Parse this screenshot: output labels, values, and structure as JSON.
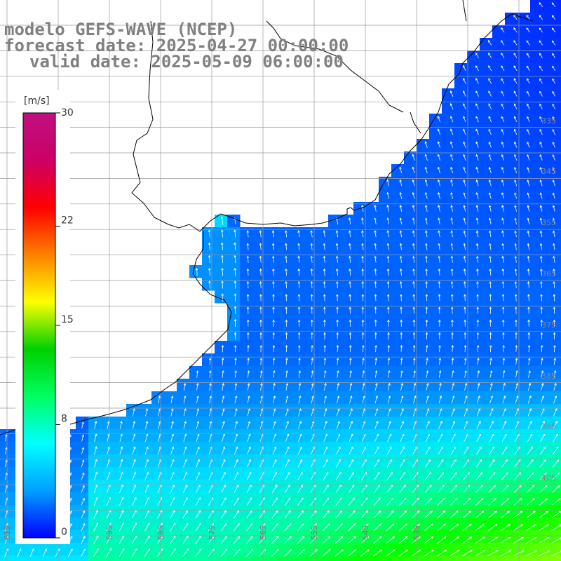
{
  "title": {
    "line1": "modelo GEFS-WAVE (NCEP)",
    "line2": "forecast date: 2025-04-27 00:00:00",
    "line3": "valid date: 2025-05-09 06:00:00"
  },
  "colorbar": {
    "unit": "[m/s]",
    "min": 0,
    "max": 30,
    "ticks": [
      "30",
      "22",
      "15",
      "8",
      "0"
    ],
    "tick_values": [
      30,
      22,
      15,
      8,
      0
    ],
    "gradient": [
      "#0000ff",
      "#00a0ff",
      "#00ffff",
      "#00ff60",
      "#00d000",
      "#ffff00",
      "#ff8000",
      "#ff0000",
      "#cc0066",
      "#c01080"
    ]
  },
  "colors": {
    "land": "#ffffff",
    "coastline": "#000000",
    "grid": "#b0b0b0",
    "arrows": "#ffffff",
    "title": "#808080"
  },
  "grid": {
    "lat_labels": [
      "335",
      "345",
      "355",
      "365",
      "375",
      "385",
      "395",
      "405"
    ],
    "lon_labels": [
      "615",
      "605",
      "595",
      "585",
      "575",
      "565",
      "555",
      "545",
      "535"
    ]
  },
  "field": {
    "variable": "wind speed",
    "range": [
      0,
      30
    ],
    "dominant_direction": "from southwest toward northeast in the south, toward northwest near the coast"
  }
}
